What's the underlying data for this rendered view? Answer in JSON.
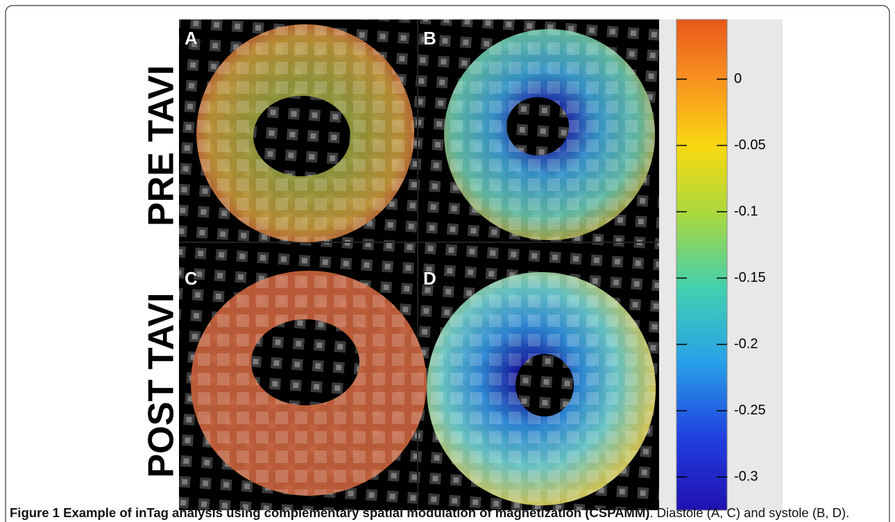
{
  "panels": [
    {
      "label": "A"
    },
    {
      "label": "B"
    },
    {
      "label": "C"
    },
    {
      "label": "D"
    }
  ],
  "row_labels": [
    "PRE TAVI",
    "POST TAVI"
  ],
  "colorbar": {
    "lim": [
      -0.325,
      0.045
    ],
    "ticks": [
      0,
      -0.05,
      -0.1,
      -0.15,
      -0.2,
      -0.25,
      -0.3
    ]
  },
  "caption": {
    "label": "Figure 1",
    "bold": "Example of inTag analysis using complementary spatial modulation of magnetization (CSPAMM)",
    "text": ". Diastole (A, C) and systole (B, D)."
  }
}
